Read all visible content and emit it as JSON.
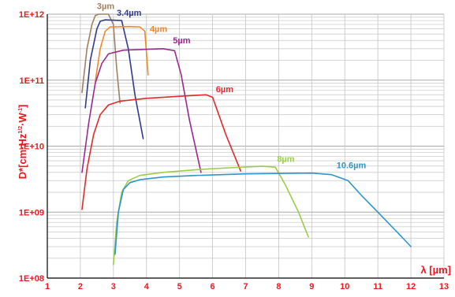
{
  "chart_data": {
    "type": "line",
    "title": "",
    "xlabel": "λ [µm]",
    "ylabel": "D*[cm·Hz^1/2·W^-1]",
    "ylabel_parts": {
      "main": "D*[cm·Hz",
      "sup1": "1/2",
      "mid": "·W",
      "sup2": "-1",
      "end": "]"
    },
    "xlim": [
      1,
      13
    ],
    "ylim": [
      100000000,
      1000000000000
    ],
    "yscale": "log",
    "x_ticks": [
      "1",
      "2",
      "3",
      "4",
      "5",
      "6",
      "7",
      "8",
      "9",
      "10",
      "11",
      "12",
      "13"
    ],
    "y_ticks": [
      "1E+08",
      "1E+09",
      "1E+10",
      "1E+11",
      "1E+12"
    ],
    "grid": true,
    "series": [
      {
        "name": "3µm",
        "color": "#a08060",
        "x": [
          2.05,
          2.2,
          2.35,
          2.45,
          2.55,
          2.85,
          3.0,
          3.1,
          3.2
        ],
        "y": [
          65000000000,
          300000000000,
          700000000000,
          950000000000,
          1000000000000,
          1000000000000,
          700000000000,
          150000000000,
          45000000000
        ]
      },
      {
        "name": "3.4µm",
        "color": "#303a8c",
        "x": [
          2.15,
          2.3,
          2.5,
          2.6,
          2.75,
          3.25,
          3.45,
          3.65,
          3.9
        ],
        "y": [
          38000000000,
          200000000000,
          600000000000,
          780000000000,
          820000000000,
          800000000000,
          300000000000,
          60000000000,
          13000000000
        ]
      },
      {
        "name": "4µm",
        "color": "#f0882a",
        "x": [
          2.45,
          2.6,
          2.75,
          2.9,
          3.5,
          3.8,
          3.95,
          4.05
        ],
        "y": [
          95000000000,
          300000000000,
          550000000000,
          640000000000,
          650000000000,
          640000000000,
          550000000000,
          120000000000
        ]
      },
      {
        "name": "5µm",
        "color": "#9a2a8e",
        "x": [
          2.05,
          2.25,
          2.45,
          2.65,
          2.85,
          3.3,
          4.5,
          4.85,
          5.05,
          5.3,
          5.65
        ],
        "y": [
          4000000000,
          22000000000,
          90000000000,
          180000000000,
          250000000000,
          285000000000,
          300000000000,
          280000000000,
          120000000000,
          25000000000,
          4000000000
        ]
      },
      {
        "name": "6µm",
        "color": "#e02a2e",
        "x": [
          2.05,
          2.2,
          2.4,
          2.6,
          2.85,
          3.2,
          4.0,
          5.0,
          5.8,
          6.0,
          6.4,
          6.85
        ],
        "y": [
          1100000000,
          4500000000,
          15000000000,
          30000000000,
          42000000000,
          48000000000,
          53000000000,
          57000000000,
          60000000000,
          55000000000,
          15000000000,
          4200000000
        ]
      },
      {
        "name": "8µm",
        "color": "#9ccc4a",
        "x": [
          3.0,
          3.1,
          3.25,
          3.45,
          3.8,
          4.5,
          5.5,
          6.5,
          7.5,
          7.9,
          8.2,
          8.6,
          8.9
        ],
        "y": [
          160000000,
          700000000,
          2000000000,
          3000000000,
          3600000000,
          4000000000,
          4400000000,
          4700000000,
          4950000000,
          4800000000,
          2600000000,
          1000000000,
          420000000
        ]
      },
      {
        "name": "10.6µm",
        "color": "#2d95c8",
        "x": [
          3.05,
          3.15,
          3.3,
          3.5,
          3.8,
          4.5,
          5.5,
          7.0,
          9.0,
          9.6,
          10.1,
          10.5,
          11.0,
          11.5,
          12.0
        ],
        "y": [
          230000000,
          1000000000,
          2200000000,
          2800000000,
          3100000000,
          3400000000,
          3600000000,
          3800000000,
          3900000000,
          3700000000,
          3000000000,
          1800000000,
          1000000000,
          550000000,
          300000000
        ]
      }
    ],
    "annotations": [
      {
        "text": "3µm",
        "series": 0,
        "x": 2.5,
        "y": 1200000000000
      },
      {
        "text": "3.4µm",
        "series": 1,
        "x": 3.1,
        "y": 950000000000
      },
      {
        "text": "4µm",
        "series": 2,
        "x": 4.1,
        "y": 540000000000
      },
      {
        "text": "5µm",
        "series": 3,
        "x": 4.8,
        "y": 360000000000
      },
      {
        "text": "6µm",
        "series": 4,
        "x": 6.1,
        "y": 66000000000
      },
      {
        "text": "8µm",
        "series": 5,
        "x": 7.95,
        "y": 5800000000
      },
      {
        "text": "10.6µm",
        "series": 6,
        "x": 9.75,
        "y": 4600000000
      }
    ]
  }
}
